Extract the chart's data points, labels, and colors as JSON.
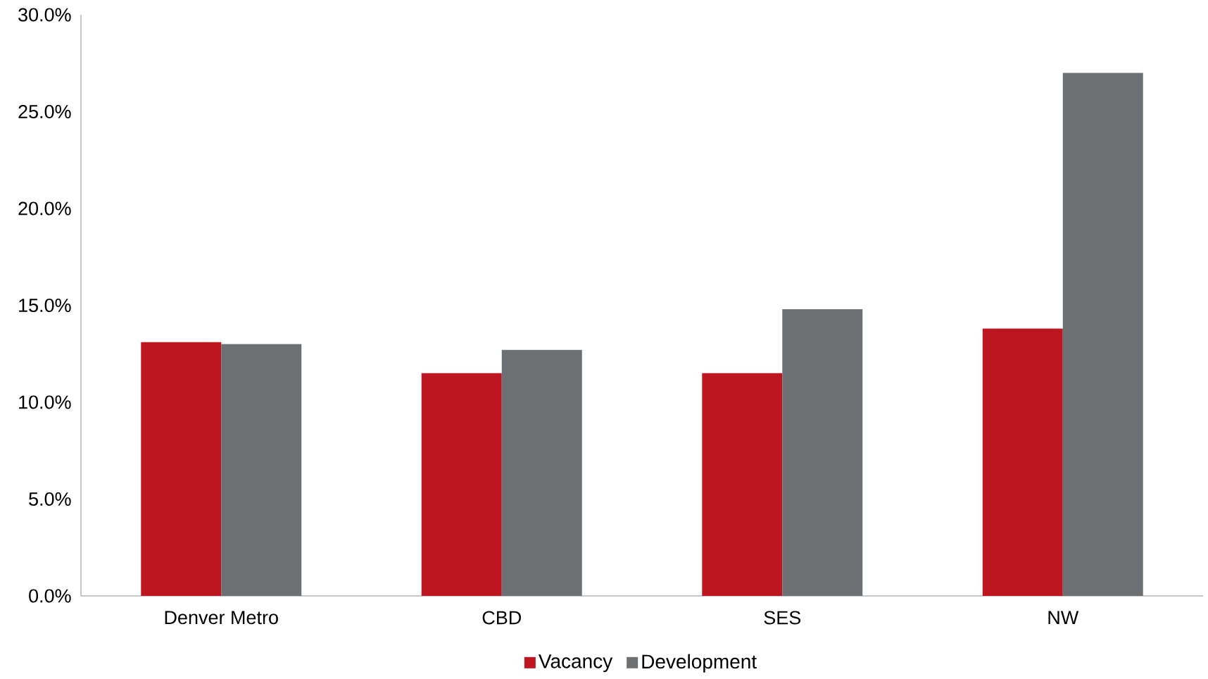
{
  "chart_data": {
    "type": "bar",
    "categories": [
      "Denver Metro",
      "CBD",
      "SES",
      "NW"
    ],
    "series": [
      {
        "name": "Vacancy",
        "color": "#be1620",
        "values": [
          13.1,
          11.5,
          11.5,
          13.8
        ]
      },
      {
        "name": "Development",
        "color": "#6d7073",
        "values": [
          13.0,
          12.7,
          14.8,
          27.0
        ]
      }
    ],
    "ylim": [
      0,
      30
    ],
    "yticks": [
      {
        "value": 0,
        "label": "0.0%"
      },
      {
        "value": 5,
        "label": "5.0%"
      },
      {
        "value": 10,
        "label": "10.0%"
      },
      {
        "value": 15,
        "label": "15.0%"
      },
      {
        "value": 20,
        "label": "20.0%"
      },
      {
        "value": 25,
        "label": "25.0%"
      },
      {
        "value": 30,
        "label": "30.0%"
      }
    ],
    "legend": "bottom",
    "grid": false
  }
}
